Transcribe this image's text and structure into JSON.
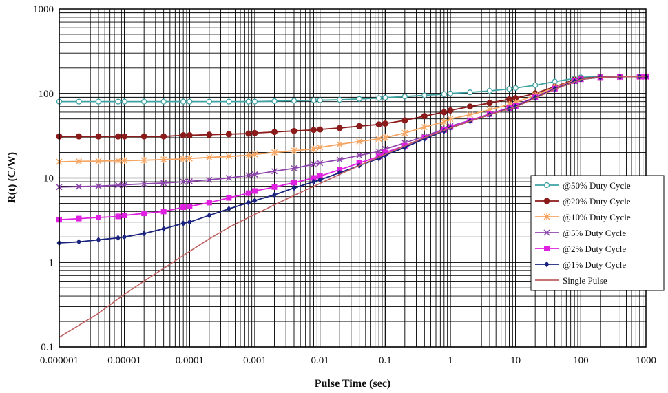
{
  "chart_data": {
    "type": "line",
    "title": "",
    "xlabel": "Pulse Time (sec)",
    "ylabel": "R(t) (C/W)",
    "x_scale": "log",
    "y_scale": "log",
    "xlim": [
      1e-06,
      1000
    ],
    "ylim": [
      0.1,
      1000
    ],
    "grid": true,
    "legend_position": "right",
    "x_ticks": [
      1e-06,
      1e-05,
      0.0001,
      0.001,
      0.01,
      0.1,
      1,
      10,
      100,
      1000
    ],
    "x_tick_labels": [
      "0.000001",
      "0.00001",
      "0.0001",
      "0.001",
      "0.01",
      "0.1",
      "1",
      "10",
      "100",
      "1000"
    ],
    "y_ticks": [
      0.1,
      1,
      10,
      100,
      1000
    ],
    "y_tick_labels": [
      "0.1",
      "1",
      "10",
      "100",
      "1000"
    ],
    "series": [
      {
        "name": "@50% Duty Cycle",
        "color": "#3fa3a3",
        "marker": "circle-open",
        "points": [
          [
            1e-06,
            80
          ],
          [
            2e-06,
            80
          ],
          [
            4e-06,
            80
          ],
          [
            8e-06,
            80
          ],
          [
            1e-05,
            80
          ],
          [
            2e-05,
            80
          ],
          [
            4e-05,
            80
          ],
          [
            8e-05,
            80
          ],
          [
            0.0001,
            80
          ],
          [
            0.0002,
            80
          ],
          [
            0.0004,
            80
          ],
          [
            0.0008,
            80
          ],
          [
            0.001,
            80
          ],
          [
            0.002,
            81
          ],
          [
            0.004,
            82
          ],
          [
            0.008,
            83
          ],
          [
            0.01,
            83
          ],
          [
            0.02,
            84
          ],
          [
            0.04,
            86
          ],
          [
            0.08,
            88
          ],
          [
            0.1,
            89
          ],
          [
            0.2,
            92
          ],
          [
            0.4,
            95
          ],
          [
            0.8,
            98
          ],
          [
            1,
            100
          ],
          [
            2,
            103
          ],
          [
            4,
            107
          ],
          [
            8,
            113
          ],
          [
            10,
            116
          ],
          [
            20,
            125
          ],
          [
            40,
            138
          ],
          [
            80,
            150
          ],
          [
            100,
            155
          ],
          [
            200,
            158
          ],
          [
            400,
            158
          ],
          [
            800,
            158
          ],
          [
            1000,
            158
          ]
        ]
      },
      {
        "name": "@20% Duty Cycle",
        "color": "#8b1a1a",
        "marker": "circle",
        "points": [
          [
            1e-06,
            31
          ],
          [
            2e-06,
            31
          ],
          [
            4e-06,
            31
          ],
          [
            8e-06,
            31
          ],
          [
            1e-05,
            31
          ],
          [
            2e-05,
            31
          ],
          [
            4e-05,
            31
          ],
          [
            8e-05,
            32
          ],
          [
            0.0001,
            32
          ],
          [
            0.0002,
            32.5
          ],
          [
            0.0004,
            33
          ],
          [
            0.0008,
            33.5
          ],
          [
            0.001,
            34
          ],
          [
            0.002,
            35
          ],
          [
            0.004,
            36
          ],
          [
            0.008,
            37
          ],
          [
            0.01,
            37.5
          ],
          [
            0.02,
            39
          ],
          [
            0.04,
            41
          ],
          [
            0.08,
            43
          ],
          [
            0.1,
            44
          ],
          [
            0.2,
            48
          ],
          [
            0.4,
            54
          ],
          [
            0.8,
            60
          ],
          [
            1,
            63
          ],
          [
            2,
            70
          ],
          [
            4,
            77
          ],
          [
            8,
            85
          ],
          [
            10,
            88
          ],
          [
            20,
            100
          ],
          [
            40,
            120
          ],
          [
            80,
            145
          ],
          [
            100,
            150
          ],
          [
            200,
            156
          ],
          [
            400,
            158
          ],
          [
            800,
            158
          ],
          [
            1000,
            158
          ]
        ]
      },
      {
        "name": "@10% Duty Cycle",
        "color": "#f4a460",
        "marker": "star",
        "points": [
          [
            1e-06,
            15.5
          ],
          [
            2e-06,
            15.7
          ],
          [
            4e-06,
            15.8
          ],
          [
            8e-06,
            16
          ],
          [
            1e-05,
            16
          ],
          [
            2e-05,
            16.2
          ],
          [
            4e-05,
            16.5
          ],
          [
            8e-05,
            16.8
          ],
          [
            0.0001,
            17
          ],
          [
            0.0002,
            17.5
          ],
          [
            0.0004,
            18
          ],
          [
            0.0008,
            18.5
          ],
          [
            0.001,
            19
          ],
          [
            0.002,
            20
          ],
          [
            0.004,
            21
          ],
          [
            0.008,
            22
          ],
          [
            0.01,
            23
          ],
          [
            0.02,
            25
          ],
          [
            0.04,
            27
          ],
          [
            0.08,
            29
          ],
          [
            0.1,
            30
          ],
          [
            0.2,
            34
          ],
          [
            0.4,
            40
          ],
          [
            0.8,
            46
          ],
          [
            1,
            50
          ],
          [
            2,
            56
          ],
          [
            4,
            64
          ],
          [
            8,
            74
          ],
          [
            10,
            78
          ],
          [
            20,
            95
          ],
          [
            40,
            118
          ],
          [
            80,
            142
          ],
          [
            100,
            148
          ],
          [
            200,
            155
          ],
          [
            400,
            157
          ],
          [
            800,
            158
          ],
          [
            1000,
            158
          ]
        ]
      },
      {
        "name": "@5% Duty Cycle",
        "color": "#8e44ad",
        "marker": "x",
        "points": [
          [
            1e-06,
            7.8
          ],
          [
            2e-06,
            7.9
          ],
          [
            4e-06,
            8
          ],
          [
            8e-06,
            8.2
          ],
          [
            1e-05,
            8.3
          ],
          [
            2e-05,
            8.5
          ],
          [
            4e-05,
            8.7
          ],
          [
            8e-05,
            9
          ],
          [
            0.0001,
            9.1
          ],
          [
            0.0002,
            9.5
          ],
          [
            0.0004,
            10
          ],
          [
            0.0008,
            10.7
          ],
          [
            0.001,
            11
          ],
          [
            0.002,
            12
          ],
          [
            0.004,
            13
          ],
          [
            0.008,
            14.5
          ],
          [
            0.01,
            15
          ],
          [
            0.02,
            16.5
          ],
          [
            0.04,
            18.5
          ],
          [
            0.08,
            20.5
          ],
          [
            0.1,
            22
          ],
          [
            0.2,
            26
          ],
          [
            0.4,
            31
          ],
          [
            0.8,
            38
          ],
          [
            1,
            41
          ],
          [
            2,
            48
          ],
          [
            4,
            57
          ],
          [
            8,
            68
          ],
          [
            10,
            72
          ],
          [
            20,
            90
          ],
          [
            40,
            115
          ],
          [
            80,
            140
          ],
          [
            100,
            147
          ],
          [
            200,
            155
          ],
          [
            400,
            157
          ],
          [
            800,
            158
          ],
          [
            1000,
            158
          ]
        ]
      },
      {
        "name": "@2% Duty Cycle",
        "color": "#e020e0",
        "marker": "square",
        "points": [
          [
            1e-06,
            3.2
          ],
          [
            2e-06,
            3.3
          ],
          [
            4e-06,
            3.4
          ],
          [
            8e-06,
            3.5
          ],
          [
            1e-05,
            3.6
          ],
          [
            2e-05,
            3.8
          ],
          [
            4e-05,
            4
          ],
          [
            8e-05,
            4.5
          ],
          [
            0.0001,
            4.6
          ],
          [
            0.0002,
            5.1
          ],
          [
            0.0004,
            5.8
          ],
          [
            0.0008,
            6.6
          ],
          [
            0.001,
            7
          ],
          [
            0.002,
            7.8
          ],
          [
            0.004,
            8.8
          ],
          [
            0.008,
            10
          ],
          [
            0.01,
            10.5
          ],
          [
            0.02,
            12.5
          ],
          [
            0.04,
            15
          ],
          [
            0.08,
            18
          ],
          [
            0.1,
            20
          ],
          [
            0.2,
            24
          ],
          [
            0.4,
            30
          ],
          [
            0.8,
            37
          ],
          [
            1,
            40
          ],
          [
            2,
            48
          ],
          [
            4,
            57
          ],
          [
            8,
            67
          ],
          [
            10,
            71
          ],
          [
            20,
            90
          ],
          [
            40,
            114
          ],
          [
            80,
            140
          ],
          [
            100,
            147
          ],
          [
            200,
            155
          ],
          [
            400,
            157
          ],
          [
            800,
            158
          ],
          [
            1000,
            158
          ]
        ]
      },
      {
        "name": "@1% Duty Cycle",
        "color": "#1a237e",
        "marker": "diamond",
        "points": [
          [
            1e-06,
            1.7
          ],
          [
            2e-06,
            1.75
          ],
          [
            4e-06,
            1.85
          ],
          [
            8e-06,
            1.95
          ],
          [
            1e-05,
            2
          ],
          [
            2e-05,
            2.2
          ],
          [
            4e-05,
            2.5
          ],
          [
            8e-05,
            2.9
          ],
          [
            0.0001,
            3
          ],
          [
            0.0002,
            3.6
          ],
          [
            0.0004,
            4.3
          ],
          [
            0.0008,
            5.1
          ],
          [
            0.001,
            5.4
          ],
          [
            0.002,
            6.3
          ],
          [
            0.004,
            7.6
          ],
          [
            0.008,
            9
          ],
          [
            0.01,
            9.5
          ],
          [
            0.02,
            11.5
          ],
          [
            0.04,
            14
          ],
          [
            0.08,
            17
          ],
          [
            0.1,
            18.5
          ],
          [
            0.2,
            23
          ],
          [
            0.4,
            29
          ],
          [
            0.8,
            36
          ],
          [
            1,
            39
          ],
          [
            2,
            47
          ],
          [
            4,
            56
          ],
          [
            8,
            66
          ],
          [
            10,
            70
          ],
          [
            20,
            89
          ],
          [
            40,
            113
          ],
          [
            80,
            139
          ],
          [
            100,
            146
          ],
          [
            200,
            155
          ],
          [
            400,
            157
          ],
          [
            800,
            158
          ],
          [
            1000,
            158
          ]
        ]
      },
      {
        "name": "Single Pulse",
        "color": "#c06060",
        "marker": "none",
        "points": [
          [
            1e-06,
            0.13
          ],
          [
            2e-06,
            0.18
          ],
          [
            4e-06,
            0.25
          ],
          [
            1e-05,
            0.42
          ],
          [
            2e-05,
            0.6
          ],
          [
            4e-05,
            0.85
          ],
          [
            0.0001,
            1.35
          ],
          [
            0.0002,
            1.9
          ],
          [
            0.0004,
            2.6
          ],
          [
            0.001,
            3.7
          ],
          [
            0.002,
            4.8
          ],
          [
            0.004,
            6.2
          ],
          [
            0.01,
            8.6
          ],
          [
            0.02,
            11
          ],
          [
            0.04,
            14
          ],
          [
            0.1,
            19
          ],
          [
            0.2,
            24
          ],
          [
            0.4,
            30
          ],
          [
            1,
            39
          ],
          [
            2,
            47
          ],
          [
            4,
            56
          ],
          [
            10,
            69
          ],
          [
            20,
            88
          ],
          [
            40,
            112
          ],
          [
            100,
            146
          ],
          [
            200,
            155
          ],
          [
            400,
            157
          ],
          [
            1000,
            158
          ]
        ]
      }
    ]
  }
}
